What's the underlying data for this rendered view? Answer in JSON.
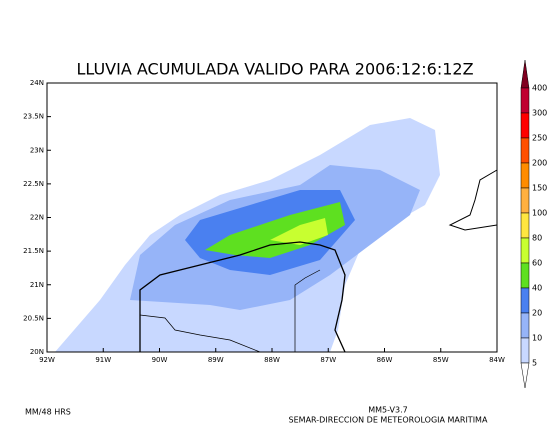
{
  "title": "LLUVIA ACUMULADA VALIDO PARA 2006:12:6:12Z",
  "lat_labels": [
    "24N",
    "23.5N",
    "23N",
    "22.5N",
    "22N",
    "21.5N",
    "21N",
    "20.5N",
    "20N"
  ],
  "lon_labels": [
    "92W",
    "91W",
    "90W",
    "89W",
    "88W",
    "87W",
    "86W",
    "85W",
    "84W"
  ],
  "colorbar": {
    "labels": [
      "400",
      "300",
      "250",
      "200",
      "150",
      "100",
      "80",
      "60",
      "40",
      "20",
      "10",
      "5"
    ],
    "colors": [
      "#800020",
      "#c00030",
      "#ff0000",
      "#ff5000",
      "#ff8c00",
      "#ffb040",
      "#ffe640",
      "#c8ff30",
      "#5ee020",
      "#4a80f0",
      "#96b4f8",
      "#c8d8ff",
      "#ffffff"
    ]
  },
  "footer": {
    "units": "MM/48 HRS",
    "model": "MM5-V3.7",
    "agency": "SEMAR-DIRECCION DE METEOROLOGIA MARITIMA"
  }
}
